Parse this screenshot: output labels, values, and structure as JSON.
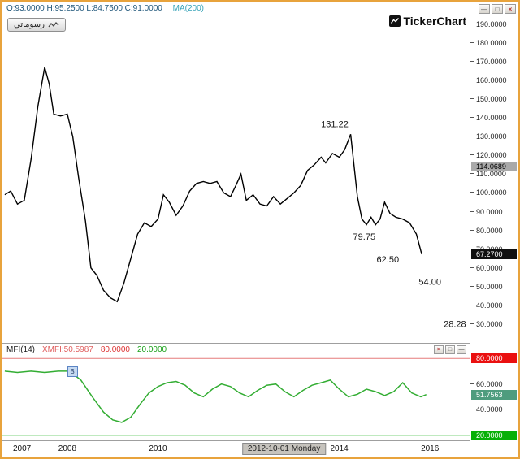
{
  "titlebar": {
    "ohlc": "O:93.0000 H:95.2500 L:84.7500 C:91.0000",
    "ma": "MA(200)",
    "controls": {
      "minimize": "—",
      "maximize": "□",
      "close": "×"
    }
  },
  "toolbar": {
    "my_charts": "رسوماتي"
  },
  "brand": {
    "logo": "TickerChart"
  },
  "mfi_header": {
    "name": "MFI(14)",
    "value": "XMFI:50.5987",
    "upper": "80.0000",
    "lower": "20.0000",
    "controls": {
      "close": "×",
      "maximize": "□",
      "minimize": "—"
    }
  },
  "x_axis": {
    "labels": [
      {
        "year": 2007,
        "text": "2007"
      },
      {
        "year": 2008,
        "text": "2008"
      },
      {
        "year": 2010,
        "text": "2010"
      },
      {
        "year": 2014,
        "text": "2014"
      },
      {
        "year": 2016,
        "text": "2016"
      }
    ],
    "highlight": {
      "year": 2012.78,
      "text": "2012-10-01 Monday"
    }
  },
  "chart_data": [
    {
      "type": "line",
      "name": "price",
      "title": "Monthly price with MA(200) legend",
      "line_color": "#000000",
      "line_width": 1.4,
      "x_range": [
        2006.55,
        2016.875
      ],
      "y_range": [
        20,
        202
      ],
      "grid": false,
      "y_tick_labels": [
        "190.0000",
        "180.0000",
        "170.0000",
        "160.0000",
        "150.0000",
        "140.0000",
        "130.0000",
        "120.0000",
        "110.0000",
        "100.0000",
        "90.0000",
        "80.0000",
        "70.0000",
        "60.0000",
        "50.0000",
        "40.0000",
        "30.0000"
      ],
      "badges": [
        {
          "value": 114.0689,
          "label": "114.0689",
          "bg": "#A9A9A9",
          "fg": "#000000"
        },
        {
          "value": 67.27,
          "label": "67.2700",
          "bg": "#101010",
          "fg": "#FFFFFF"
        }
      ],
      "annotations": [
        {
          "x": 2013.9,
          "y": 135,
          "text": "131.22"
        },
        {
          "x": 2014.55,
          "y": 75,
          "text": "79.75"
        },
        {
          "x": 2015.07,
          "y": 63,
          "text": "62.50"
        },
        {
          "x": 2016.0,
          "y": 51,
          "text": "54.00"
        },
        {
          "x": 2016.55,
          "y": 28.5,
          "text": "28.28"
        }
      ],
      "points": [
        [
          2006.62,
          99
        ],
        [
          2006.75,
          101
        ],
        [
          2006.9,
          94
        ],
        [
          2007.05,
          96
        ],
        [
          2007.2,
          118
        ],
        [
          2007.35,
          146
        ],
        [
          2007.5,
          167
        ],
        [
          2007.6,
          158
        ],
        [
          2007.7,
          142
        ],
        [
          2007.85,
          141
        ],
        [
          2008.0,
          142
        ],
        [
          2008.12,
          130
        ],
        [
          2008.25,
          108
        ],
        [
          2008.4,
          85
        ],
        [
          2008.52,
          60
        ],
        [
          2008.65,
          56
        ],
        [
          2008.8,
          48
        ],
        [
          2008.95,
          44
        ],
        [
          2009.1,
          42
        ],
        [
          2009.25,
          52
        ],
        [
          2009.4,
          65
        ],
        [
          2009.55,
          78
        ],
        [
          2009.7,
          84
        ],
        [
          2009.85,
          82
        ],
        [
          2010.0,
          86
        ],
        [
          2010.12,
          99
        ],
        [
          2010.25,
          95
        ],
        [
          2010.4,
          88
        ],
        [
          2010.55,
          93
        ],
        [
          2010.7,
          101
        ],
        [
          2010.85,
          105
        ],
        [
          2011.0,
          106
        ],
        [
          2011.15,
          105
        ],
        [
          2011.3,
          106
        ],
        [
          2011.45,
          100
        ],
        [
          2011.6,
          98
        ],
        [
          2011.72,
          104
        ],
        [
          2011.83,
          110
        ],
        [
          2011.95,
          96
        ],
        [
          2012.1,
          99
        ],
        [
          2012.25,
          94
        ],
        [
          2012.4,
          93
        ],
        [
          2012.55,
          98
        ],
        [
          2012.7,
          94
        ],
        [
          2012.85,
          97
        ],
        [
          2013.0,
          100
        ],
        [
          2013.15,
          104
        ],
        [
          2013.3,
          112
        ],
        [
          2013.45,
          115
        ],
        [
          2013.6,
          119
        ],
        [
          2013.7,
          116
        ],
        [
          2013.85,
          121
        ],
        [
          2014.0,
          119
        ],
        [
          2014.12,
          123
        ],
        [
          2014.25,
          131.22
        ],
        [
          2014.4,
          98
        ],
        [
          2014.5,
          86
        ],
        [
          2014.6,
          83
        ],
        [
          2014.7,
          87
        ],
        [
          2014.8,
          83
        ],
        [
          2014.9,
          86
        ],
        [
          2015.0,
          95
        ],
        [
          2015.12,
          89
        ],
        [
          2015.25,
          87
        ],
        [
          2015.4,
          86
        ],
        [
          2015.55,
          84
        ],
        [
          2015.7,
          78
        ],
        [
          2015.82,
          67.27
        ]
      ]
    },
    {
      "type": "line",
      "name": "mfi",
      "title": "MFI(14)",
      "line_color": "#33AD33",
      "line_width": 1.5,
      "x_range": [
        2006.55,
        2016.875
      ],
      "y_range": [
        16,
        82
      ],
      "grid": false,
      "hlines": [
        {
          "y": 80,
          "color": "#E57C7C",
          "name": "overbought-line"
        },
        {
          "y": 20,
          "color": "#00A800",
          "name": "oversold-line"
        }
      ],
      "y_tick_labels": [
        "60.0000",
        "40.0000"
      ],
      "badges": [
        {
          "value": 80,
          "label": "80.0000",
          "bg": "#EA1010",
          "fg": "#FFFFFF"
        },
        {
          "value": 51.7563,
          "label": "51.7563",
          "bg": "#4E9C7E",
          "fg": "#FFFFFF"
        },
        {
          "value": 20,
          "label": "20.0000",
          "bg": "#07B007",
          "fg": "#FFFFFF"
        }
      ],
      "marker": {
        "x": 2008.1,
        "y": 70,
        "label": "B"
      },
      "points": [
        [
          2006.62,
          70
        ],
        [
          2006.9,
          69
        ],
        [
          2007.2,
          70
        ],
        [
          2007.5,
          69
        ],
        [
          2007.8,
          70
        ],
        [
          2008.05,
          70
        ],
        [
          2008.3,
          63
        ],
        [
          2008.55,
          50
        ],
        [
          2008.8,
          38
        ],
        [
          2009.0,
          32
        ],
        [
          2009.2,
          30
        ],
        [
          2009.4,
          34
        ],
        [
          2009.6,
          44
        ],
        [
          2009.8,
          53
        ],
        [
          2010.0,
          58
        ],
        [
          2010.2,
          61
        ],
        [
          2010.4,
          62
        ],
        [
          2010.6,
          59
        ],
        [
          2010.8,
          53
        ],
        [
          2011.0,
          50
        ],
        [
          2011.2,
          56
        ],
        [
          2011.4,
          60
        ],
        [
          2011.6,
          58
        ],
        [
          2011.8,
          53
        ],
        [
          2012.0,
          50
        ],
        [
          2012.2,
          55
        ],
        [
          2012.4,
          59
        ],
        [
          2012.6,
          60
        ],
        [
          2012.8,
          54
        ],
        [
          2013.0,
          50
        ],
        [
          2013.2,
          55
        ],
        [
          2013.4,
          59
        ],
        [
          2013.6,
          61
        ],
        [
          2013.8,
          63
        ],
        [
          2014.0,
          56
        ],
        [
          2014.2,
          50
        ],
        [
          2014.4,
          52
        ],
        [
          2014.6,
          56
        ],
        [
          2014.8,
          54
        ],
        [
          2015.0,
          51
        ],
        [
          2015.2,
          54
        ],
        [
          2015.4,
          61
        ],
        [
          2015.6,
          53
        ],
        [
          2015.8,
          50
        ],
        [
          2015.92,
          51.76
        ]
      ]
    }
  ]
}
